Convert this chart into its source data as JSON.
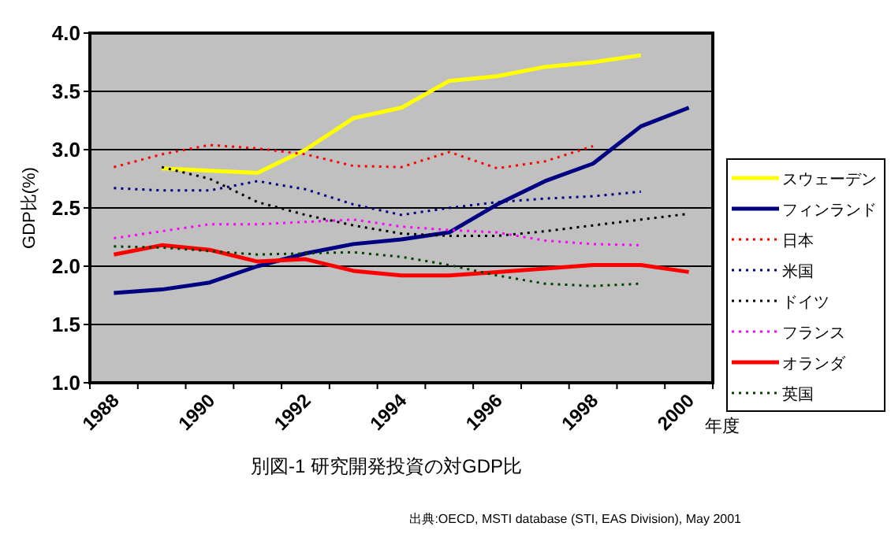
{
  "chart_data": {
    "type": "line",
    "title": "別図-1  研究開発投資の対GDP比",
    "xlabel": "年度",
    "ylabel": "GDP比(%)",
    "categories": [
      "1988",
      null,
      "1990",
      null,
      "1992",
      null,
      "1994",
      null,
      "1996",
      null,
      "1998",
      null,
      "2000"
    ],
    "series": [
      {
        "name": "スウェーデン",
        "color": "#ffff00",
        "line_style": "solid",
        "values": [
          null,
          2.84,
          2.82,
          2.8,
          3.0,
          3.27,
          3.36,
          3.59,
          3.63,
          3.71,
          3.75,
          3.81,
          null
        ]
      },
      {
        "name": "フィンランド",
        "color": "#000080",
        "line_style": "solid",
        "values": [
          1.77,
          1.8,
          1.86,
          2.0,
          2.11,
          2.19,
          2.23,
          2.29,
          2.53,
          2.73,
          2.88,
          3.2,
          3.36
        ]
      },
      {
        "name": "日本",
        "color": "#ff0000",
        "line_style": "dotted",
        "values": [
          2.85,
          2.96,
          3.04,
          3.01,
          2.96,
          2.86,
          2.85,
          2.98,
          2.84,
          2.9,
          3.03,
          null,
          null
        ]
      },
      {
        "name": "米国",
        "color": "#000080",
        "line_style": "dotted",
        "values": [
          2.67,
          2.65,
          2.65,
          2.73,
          2.66,
          2.53,
          2.44,
          2.5,
          2.55,
          2.58,
          2.6,
          2.64,
          null
        ]
      },
      {
        "name": "ドイツ",
        "color": "#000000",
        "line_style": "dotted",
        "values": [
          null,
          2.85,
          2.75,
          2.55,
          2.44,
          2.35,
          2.28,
          2.26,
          2.26,
          2.3,
          2.35,
          2.4,
          2.45
        ]
      },
      {
        "name": "フランス",
        "color": "#ff00ff",
        "line_style": "dotted",
        "values": [
          2.24,
          2.3,
          2.36,
          2.36,
          2.38,
          2.4,
          2.34,
          2.31,
          2.29,
          2.22,
          2.19,
          2.18,
          null
        ]
      },
      {
        "name": "オランダ",
        "color": "#ff0000",
        "line_style": "solid",
        "values": [
          2.1,
          2.18,
          2.14,
          2.04,
          2.06,
          1.96,
          1.92,
          1.92,
          1.95,
          1.98,
          2.01,
          2.01,
          1.95
        ]
      },
      {
        "name": "英国",
        "color": "#004000",
        "line_style": "dotted",
        "values": [
          2.17,
          2.16,
          2.13,
          2.1,
          2.11,
          2.12,
          2.08,
          2.01,
          1.92,
          1.85,
          1.83,
          1.85,
          null
        ]
      }
    ],
    "ylim": [
      1.0,
      4.0
    ],
    "yticks": [
      {
        "value": 1,
        "label": "1.0"
      },
      1.5,
      {
        "value": 2,
        "label": "2.0"
      },
      2.5,
      {
        "value": 3,
        "label": "3.0"
      },
      3.5,
      {
        "value": 4,
        "label": "4.0"
      }
    ],
    "grid": "y",
    "legend": "right",
    "annotations": [
      "出典:OECD, MSTI database (STI, EAS Division), May 2001"
    ]
  }
}
